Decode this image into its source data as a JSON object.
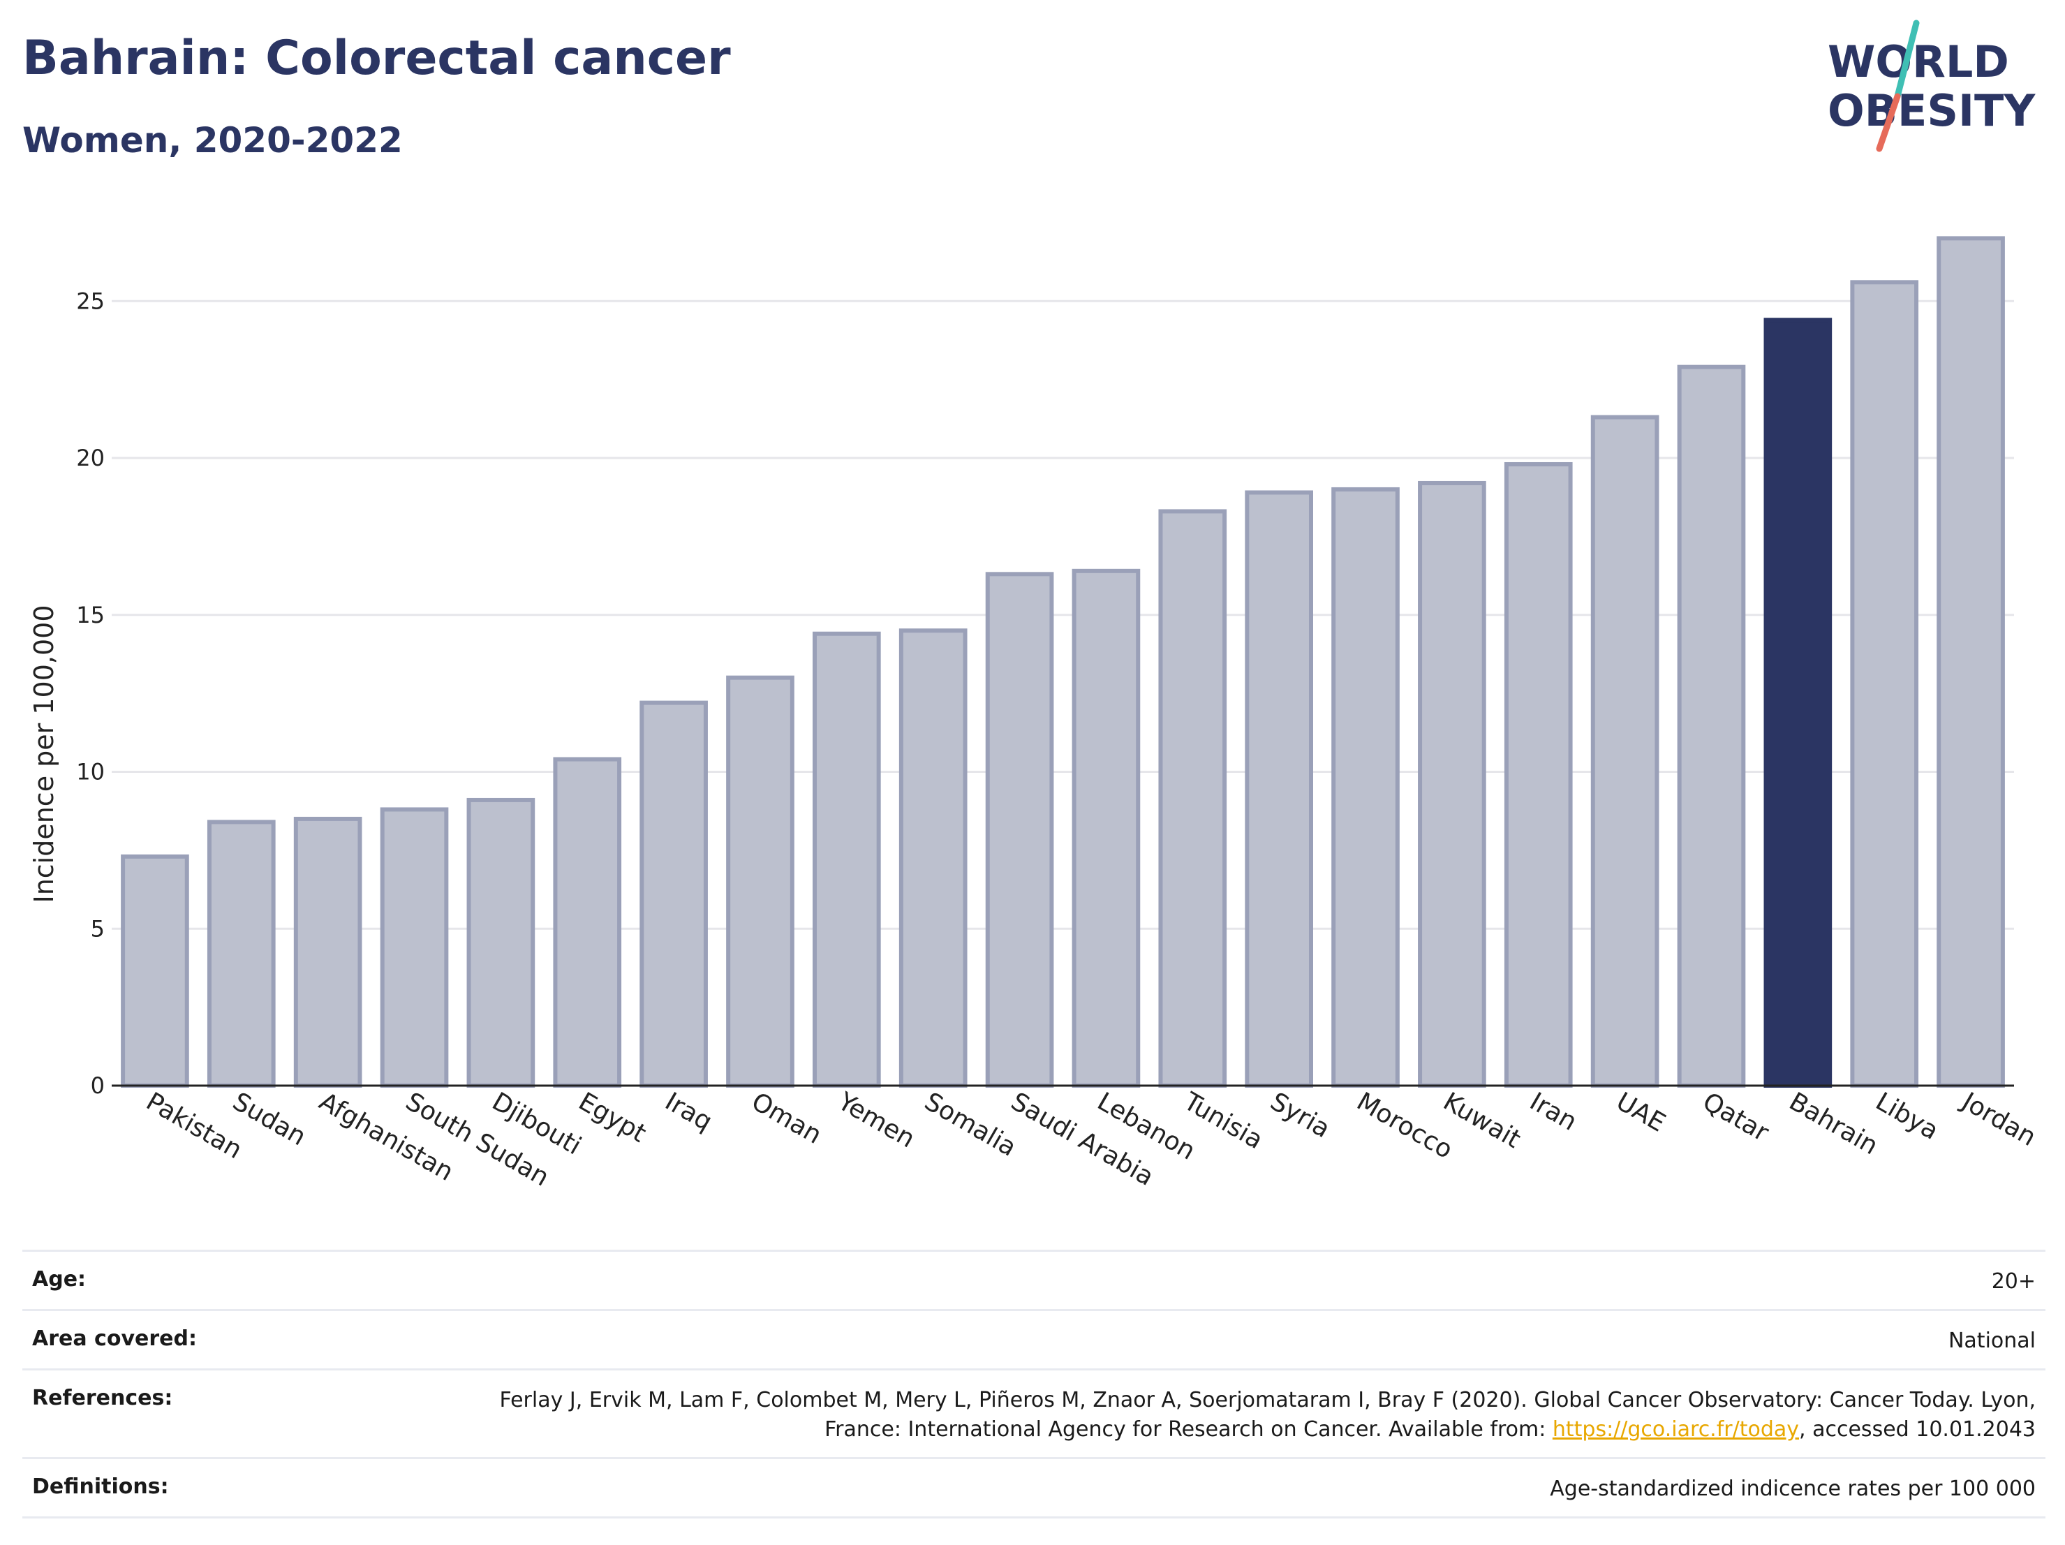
{
  "title": "Bahrain: Colorectal cancer",
  "subtitle": "Women, 2020-2022",
  "logo": {
    "line1": "WORLD",
    "line2": "OBESITY"
  },
  "colors": {
    "bar": "#bcc0ce",
    "bar_edge": "#9aa0b8",
    "highlight": "#2b3563",
    "title": "#2b3563",
    "logo_slash_top": "#3fbfb4",
    "logo_slash_bottom": "#e66b5a"
  },
  "chart_data": {
    "type": "bar",
    "categories": [
      "Pakistan",
      "Sudan",
      "Afghanistan",
      "South Sudan",
      "Djibouti",
      "Egypt",
      "Iraq",
      "Oman",
      "Yemen",
      "Somalia",
      "Saudi Arabia",
      "Lebanon",
      "Tunisia",
      "Syria",
      "Morocco",
      "Kuwait",
      "Iran",
      "UAE",
      "Qatar",
      "Bahrain",
      "Libya",
      "Jordan"
    ],
    "values": [
      7.3,
      8.4,
      8.5,
      8.8,
      9.1,
      10.4,
      12.2,
      13.0,
      14.4,
      14.5,
      16.3,
      16.4,
      18.3,
      18.9,
      19.0,
      19.2,
      19.8,
      21.3,
      22.9,
      24.4,
      25.6,
      27.0
    ],
    "highlight": "Bahrain",
    "ylabel": "Incidence per 100,000",
    "xlabel": "",
    "ylim": [
      0,
      27.5
    ],
    "yticks": [
      0,
      5,
      10,
      15,
      20,
      25
    ],
    "grid": true
  },
  "info": {
    "age": {
      "label": "Age:",
      "value": "20+"
    },
    "area": {
      "label": "Area covered:",
      "value": "National"
    },
    "references": {
      "label": "References:",
      "text_before": "Ferlay J, Ervik M, Lam F, Colombet M, Mery L, Piñeros M, Znaor A, Soerjomataram I, Bray F (2020). Global Cancer Observatory: Cancer Today. Lyon, France: International Agency for Research on Cancer. Available from: ",
      "link": "https://gco.iarc.fr/today",
      "text_after": ", accessed 10.01.2043"
    },
    "definitions": {
      "label": "Definitions:",
      "value": "Age-standardized indicence rates per 100 000"
    }
  }
}
